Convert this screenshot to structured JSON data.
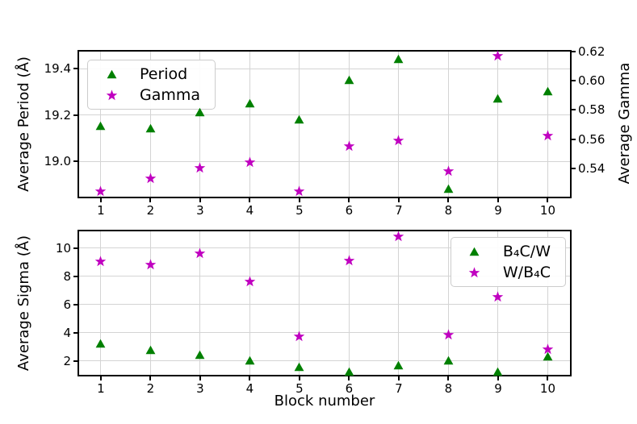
{
  "colors": {
    "green": "#008000",
    "magenta": "#c000c0",
    "grid": "#d4d4d4",
    "spine": "#000000",
    "legend_border": "#cccccc",
    "background": "#ffffff"
  },
  "chart_data": [
    {
      "type": "scatter",
      "grid": true,
      "x": [
        1,
        2,
        3,
        4,
        5,
        6,
        7,
        8,
        9,
        10
      ],
      "x_axis": {
        "tick_labels": [
          "1",
          "2",
          "3",
          "4",
          "5",
          "6",
          "7",
          "8",
          "9",
          "10"
        ],
        "tick_values": [
          1,
          2,
          3,
          4,
          5,
          6,
          7,
          8,
          9,
          10
        ],
        "range": [
          0.53,
          10.48
        ]
      },
      "left_axis": {
        "label": "Average Period (Å)",
        "tick_labels": [
          "19.0",
          "19.2",
          "19.4"
        ],
        "tick_values": [
          19.0,
          19.2,
          19.4
        ],
        "range": [
          18.84,
          19.48
        ]
      },
      "right_axis": {
        "label": "Average Gamma",
        "tick_labels": [
          "0.54",
          "0.56",
          "0.58",
          "0.60",
          "0.62"
        ],
        "tick_values": [
          0.54,
          0.56,
          0.58,
          0.6,
          0.62
        ],
        "range": [
          0.5195,
          0.621
        ]
      },
      "series": [
        {
          "name": "Period",
          "marker": "triangle",
          "color": "#008000",
          "axis": "left",
          "values": [
            19.15,
            19.14,
            19.21,
            19.25,
            19.18,
            19.35,
            19.44,
            18.88,
            19.27,
            19.3
          ]
        },
        {
          "name": "Gamma",
          "marker": "star",
          "color": "#c000c0",
          "axis": "right",
          "values": [
            0.524,
            0.533,
            0.54,
            0.544,
            0.524,
            0.555,
            0.559,
            0.538,
            0.617,
            0.562
          ]
        }
      ],
      "legend": {
        "position": "upper-left"
      }
    },
    {
      "type": "scatter",
      "grid": true,
      "x": [
        1,
        2,
        3,
        4,
        5,
        6,
        7,
        8,
        9,
        10
      ],
      "x_axis": {
        "label": "Block number",
        "tick_labels": [
          "1",
          "2",
          "3",
          "4",
          "5",
          "6",
          "7",
          "8",
          "9",
          "10"
        ],
        "tick_values": [
          1,
          2,
          3,
          4,
          5,
          6,
          7,
          8,
          9,
          10
        ],
        "range": [
          0.53,
          10.48
        ]
      },
      "left_axis": {
        "label": "Average Sigma (Å)",
        "tick_labels": [
          "2",
          "4",
          "6",
          "8",
          "10"
        ],
        "tick_values": [
          2,
          4,
          6,
          8,
          10
        ],
        "range": [
          0.91,
          11.31
        ]
      },
      "series": [
        {
          "name": "B₄C/W",
          "marker": "triangle",
          "color": "#008000",
          "axis": "left",
          "values": [
            3.2,
            2.75,
            2.45,
            2.0,
            1.55,
            1.25,
            1.7,
            2.05,
            1.25,
            2.3
          ]
        },
        {
          "name": "W/B₄C",
          "marker": "star",
          "color": "#c000c0",
          "axis": "left",
          "values": [
            9.05,
            8.8,
            9.6,
            7.65,
            3.75,
            9.1,
            10.85,
            3.85,
            6.55,
            2.85
          ]
        }
      ],
      "legend": {
        "position": "upper-right"
      }
    }
  ]
}
